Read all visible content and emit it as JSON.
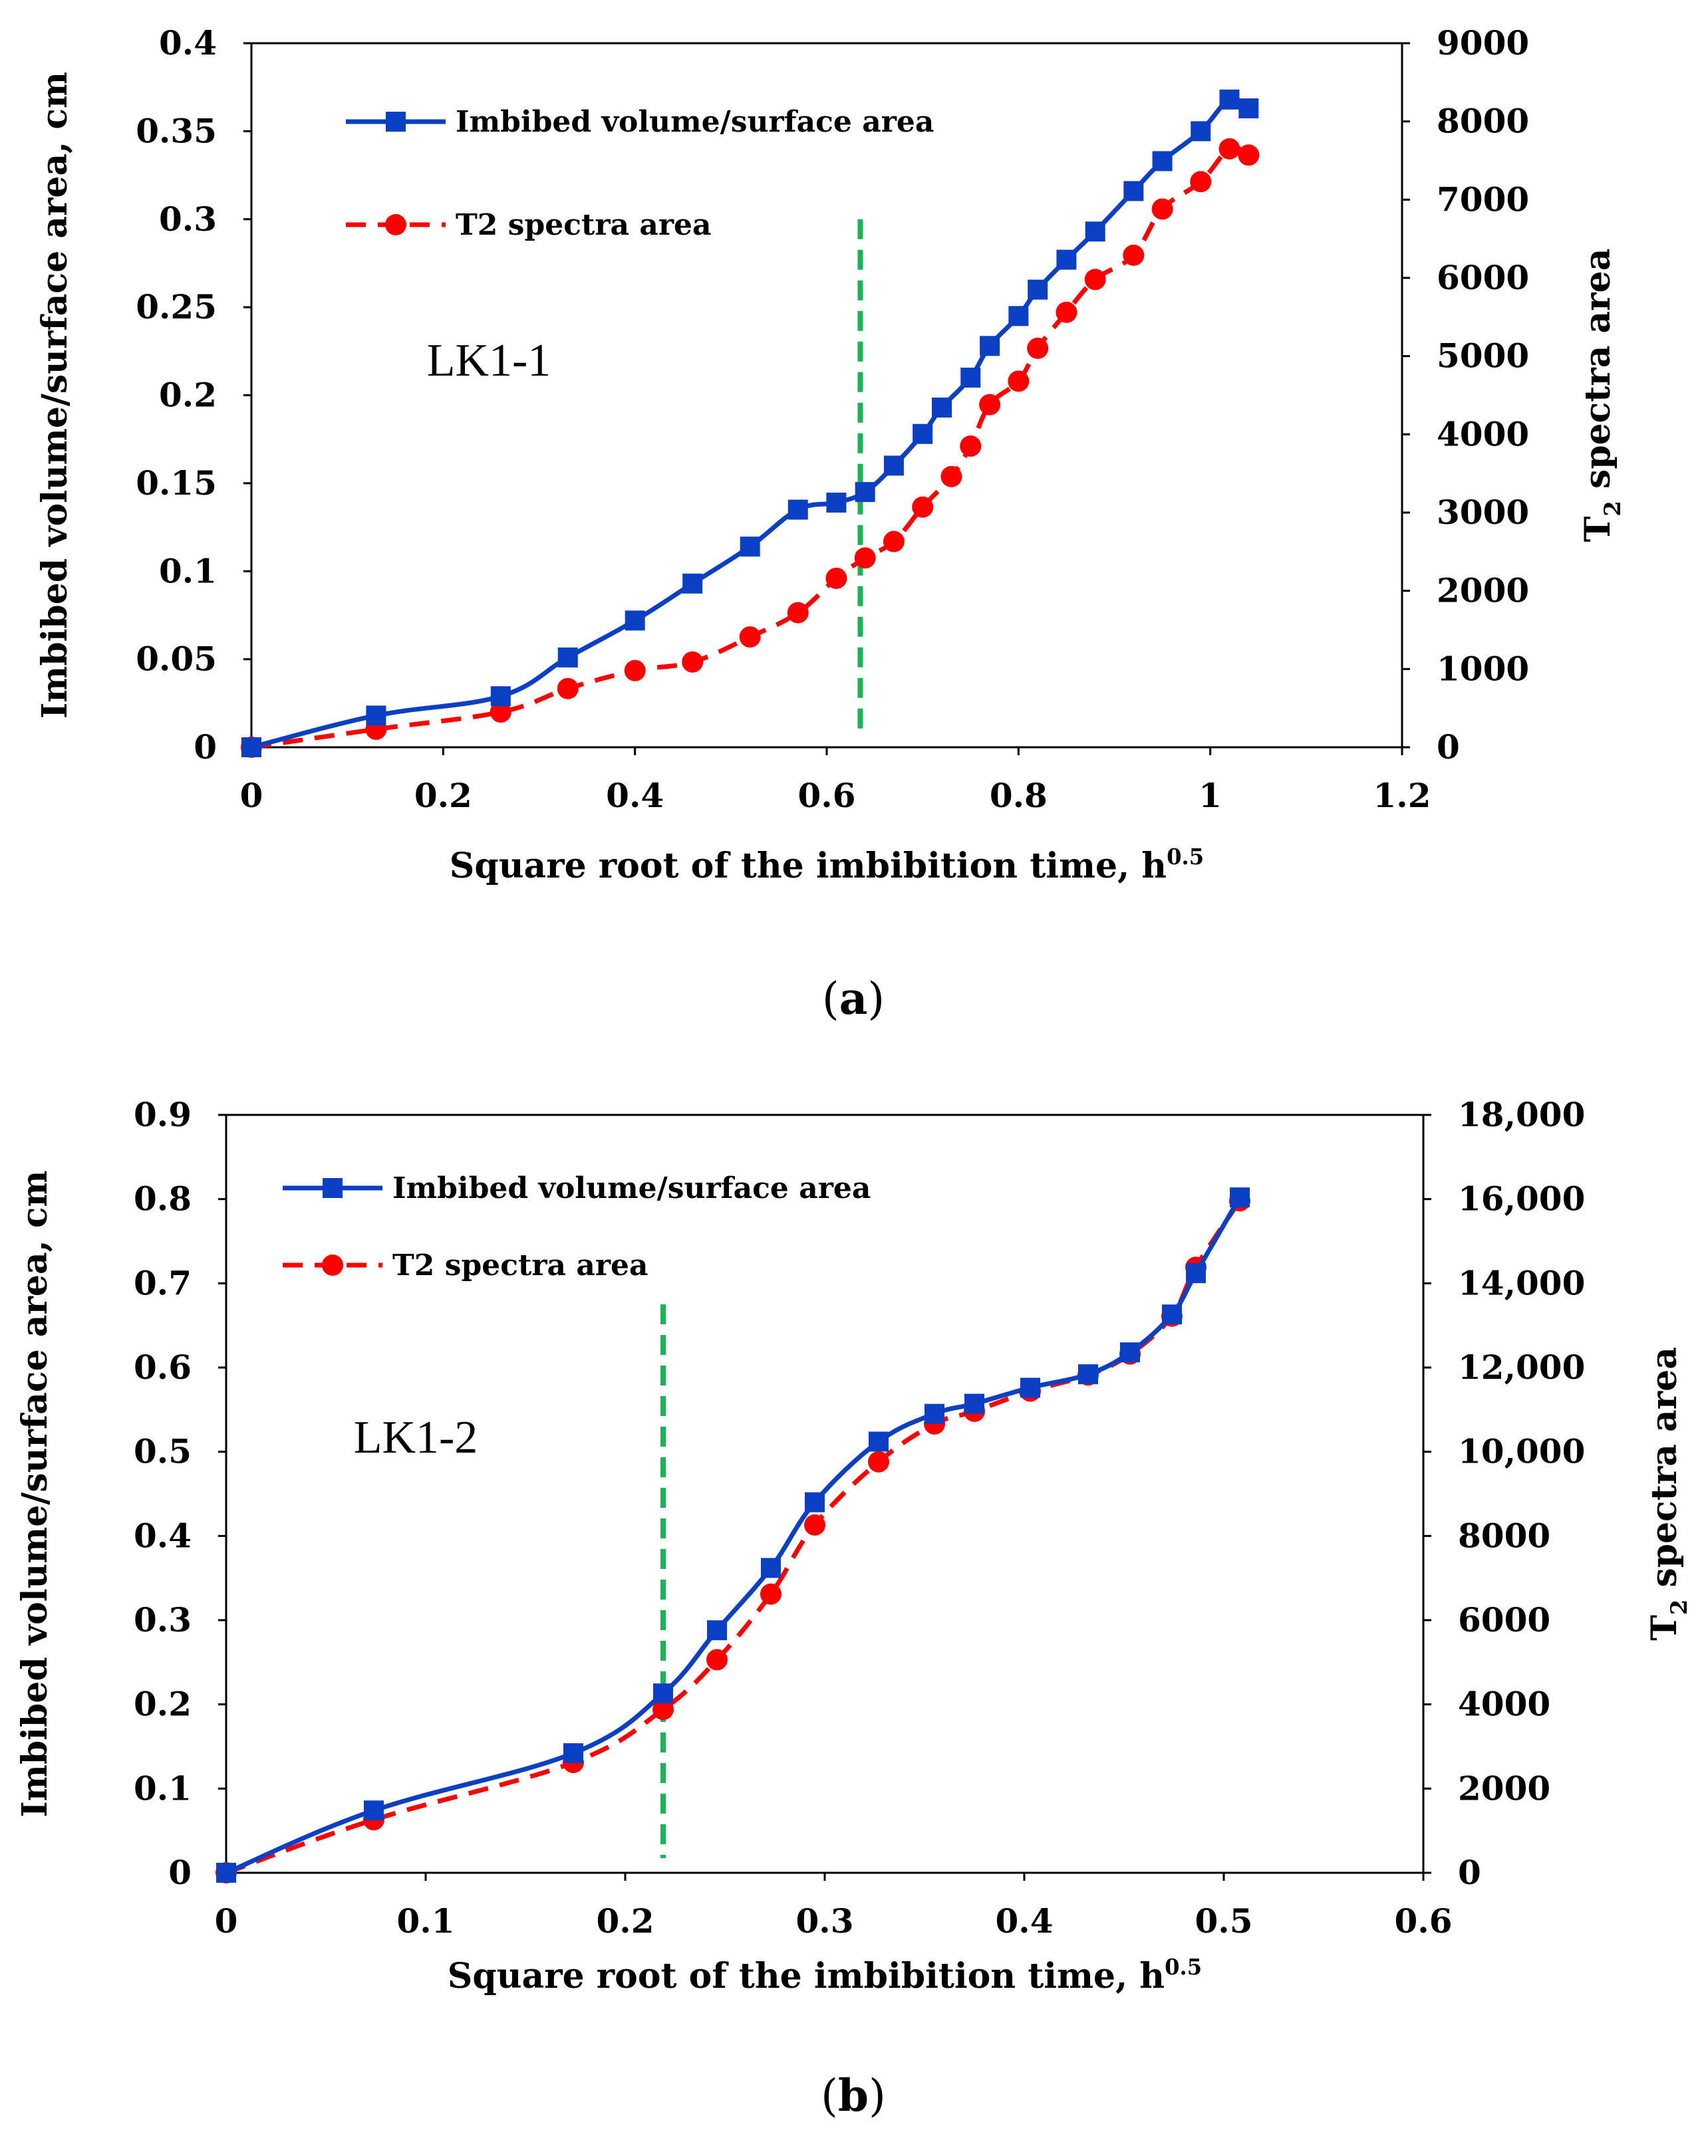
{
  "chart_data": [
    {
      "type": "line",
      "panel": "a",
      "caption_letter": "a",
      "xlabel": "Square root of the imbibition time, h",
      "xlabel_sup": "0.5",
      "ylabel": "Imbibed volume/surface area, cm",
      "y2label": "T",
      "y2label_sub": "2",
      "y2label_rest": " spectra area",
      "annotation": "LK1-1",
      "xlim": [
        0,
        1.2
      ],
      "ylim": [
        0,
        0.4
      ],
      "y2lim": [
        0,
        9000
      ],
      "x_ticks": [
        "0",
        "0.2",
        "0.4",
        "0.6",
        "0.8",
        "1",
        "1.2"
      ],
      "y_ticks": [
        "0",
        "0.05",
        "0.1",
        "0.15",
        "0.2",
        "0.25",
        "0.3",
        "0.35",
        "0.4"
      ],
      "y2_ticks": [
        "0",
        "1000",
        "2000",
        "3000",
        "4000",
        "5000",
        "6000",
        "7000",
        "8000",
        "9000"
      ],
      "vline_x": 0.635,
      "series": [
        {
          "name": "Imbibed volume/surface area",
          "axis": "left",
          "color": "#0b3fc4",
          "marker": "square",
          "x": [
            0,
            0.13,
            0.26,
            0.33,
            0.4,
            0.46,
            0.52,
            0.57,
            0.61,
            0.64,
            0.67,
            0.7,
            0.72,
            0.75,
            0.77,
            0.8,
            0.82,
            0.85,
            0.88,
            0.92,
            0.95,
            0.99,
            1.02,
            1.04
          ],
          "values": [
            0,
            0.018,
            0.029,
            0.051,
            0.072,
            0.093,
            0.114,
            0.135,
            0.139,
            0.145,
            0.16,
            0.178,
            0.193,
            0.21,
            0.228,
            0.245,
            0.26,
            0.277,
            0.293,
            0.316,
            0.333,
            0.35,
            0.368,
            0.363
          ]
        },
        {
          "name": "T2 spectra area",
          "axis": "right",
          "color": "#ff0000",
          "marker": "circle",
          "x": [
            0,
            0.13,
            0.26,
            0.33,
            0.4,
            0.46,
            0.52,
            0.57,
            0.61,
            0.64,
            0.67,
            0.7,
            0.73,
            0.75,
            0.77,
            0.8,
            0.82,
            0.85,
            0.88,
            0.92,
            0.95,
            0.99,
            1.02,
            1.04
          ],
          "values": [
            0,
            230,
            450,
            750,
            980,
            1090,
            1410,
            1720,
            2160,
            2420,
            2630,
            3070,
            3460,
            3850,
            4380,
            4680,
            5100,
            5560,
            5980,
            6290,
            6880,
            7230,
            7650,
            7570
          ]
        }
      ]
    },
    {
      "type": "line",
      "panel": "b",
      "caption_letter": "b",
      "xlabel": "Square root of the imbibition time, h",
      "xlabel_sup": "0.5",
      "ylabel": "Imbibed volume/surface area, cm",
      "y2label": "T",
      "y2label_sub": "2",
      "y2label_rest": " spectra area",
      "annotation": "LK1-2",
      "xlim": [
        0,
        0.6
      ],
      "ylim": [
        0,
        0.9
      ],
      "y2lim": [
        0,
        18000
      ],
      "x_ticks": [
        "0",
        "0.1",
        "0.2",
        "0.3",
        "0.4",
        "0.5",
        "0.6"
      ],
      "y_ticks": [
        "0",
        "0.1",
        "0.2",
        "0.3",
        "0.4",
        "0.5",
        "0.6",
        "0.7",
        "0.8",
        "0.9"
      ],
      "y2_ticks": [
        "0",
        "2000",
        "4000",
        "6000",
        "8000",
        "10,000",
        "12,000",
        "14,000",
        "16,000",
        "18,000"
      ],
      "vline_x": 0.219,
      "series": [
        {
          "name": "Imbibed volume/surface area",
          "axis": "left",
          "color": "#0b3fc4",
          "marker": "square",
          "x": [
            0,
            0.074,
            0.174,
            0.219,
            0.246,
            0.273,
            0.295,
            0.327,
            0.355,
            0.375,
            0.403,
            0.432,
            0.453,
            0.474,
            0.486,
            0.508
          ],
          "values": [
            0,
            0.074,
            0.142,
            0.213,
            0.288,
            0.362,
            0.44,
            0.512,
            0.545,
            0.557,
            0.576,
            0.592,
            0.618,
            0.663,
            0.712,
            0.802
          ]
        },
        {
          "name": "T2 spectra area",
          "axis": "right",
          "color": "#ff0000",
          "marker": "circle",
          "x": [
            0,
            0.074,
            0.174,
            0.219,
            0.246,
            0.273,
            0.295,
            0.327,
            0.355,
            0.375,
            0.403,
            0.432,
            0.453,
            0.474,
            0.486,
            0.508
          ],
          "values": [
            0,
            1260,
            2620,
            3880,
            5060,
            6620,
            8260,
            9760,
            10660,
            10960,
            11440,
            11820,
            12320,
            13220,
            14380,
            15960
          ]
        }
      ]
    }
  ]
}
